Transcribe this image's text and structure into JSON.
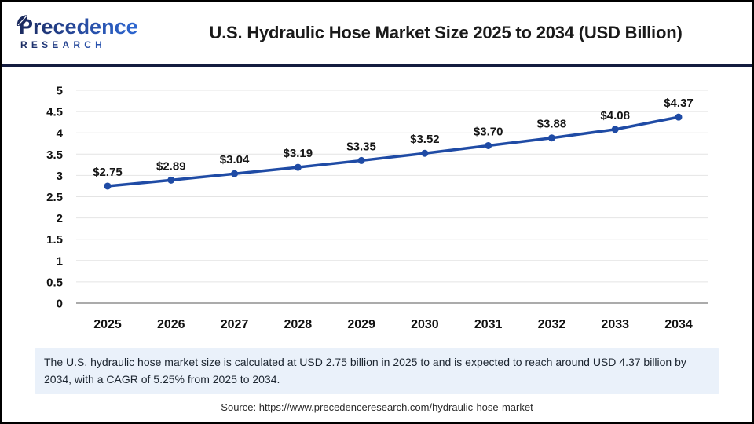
{
  "header": {
    "logo_line1": "Precedence",
    "logo_line2": "RESEARCH",
    "title": "U.S. Hydraulic Hose Market Size 2025 to 2034 (USD Billion)"
  },
  "chart_data": {
    "type": "line",
    "title": "U.S. Hydraulic Hose Market Size 2025 to 2034 (USD Billion)",
    "categories": [
      "2025",
      "2026",
      "2027",
      "2028",
      "2029",
      "2030",
      "2031",
      "2032",
      "2033",
      "2034"
    ],
    "values": [
      2.75,
      2.89,
      3.04,
      3.19,
      3.35,
      3.52,
      3.7,
      3.88,
      4.08,
      4.37
    ],
    "data_labels": [
      "$2.75",
      "$2.89",
      "$3.04",
      "$3.19",
      "$3.35",
      "$3.52",
      "$3.70",
      "$3.88",
      "$4.08",
      "$4.37"
    ],
    "xlabel": "",
    "ylabel": "",
    "ylim": [
      0,
      5
    ],
    "ytick_step": 0.5,
    "grid": true,
    "legend": "none",
    "line_color": "#1F4BA5",
    "gridline_color": "#E4E4E4",
    "axis_line_color": "#ABABAB"
  },
  "footer": {
    "summary": "The U.S. hydraulic hose market size is calculated at USD 2.75 billion in 2025 to and is expected to reach around USD 4.37 billion by 2034, with a CAGR of 5.25% from 2025 to 2034.",
    "source": "Source: https://www.precedenceresearch.com/hydraulic-hose-market"
  },
  "colors": {
    "accent_line": "#1F4BA5",
    "header_rule": "#141C3F",
    "summary_bg": "#EAF1FA",
    "logo_navy": "#1B2A5E",
    "logo_blue": "#2F6FE0"
  }
}
